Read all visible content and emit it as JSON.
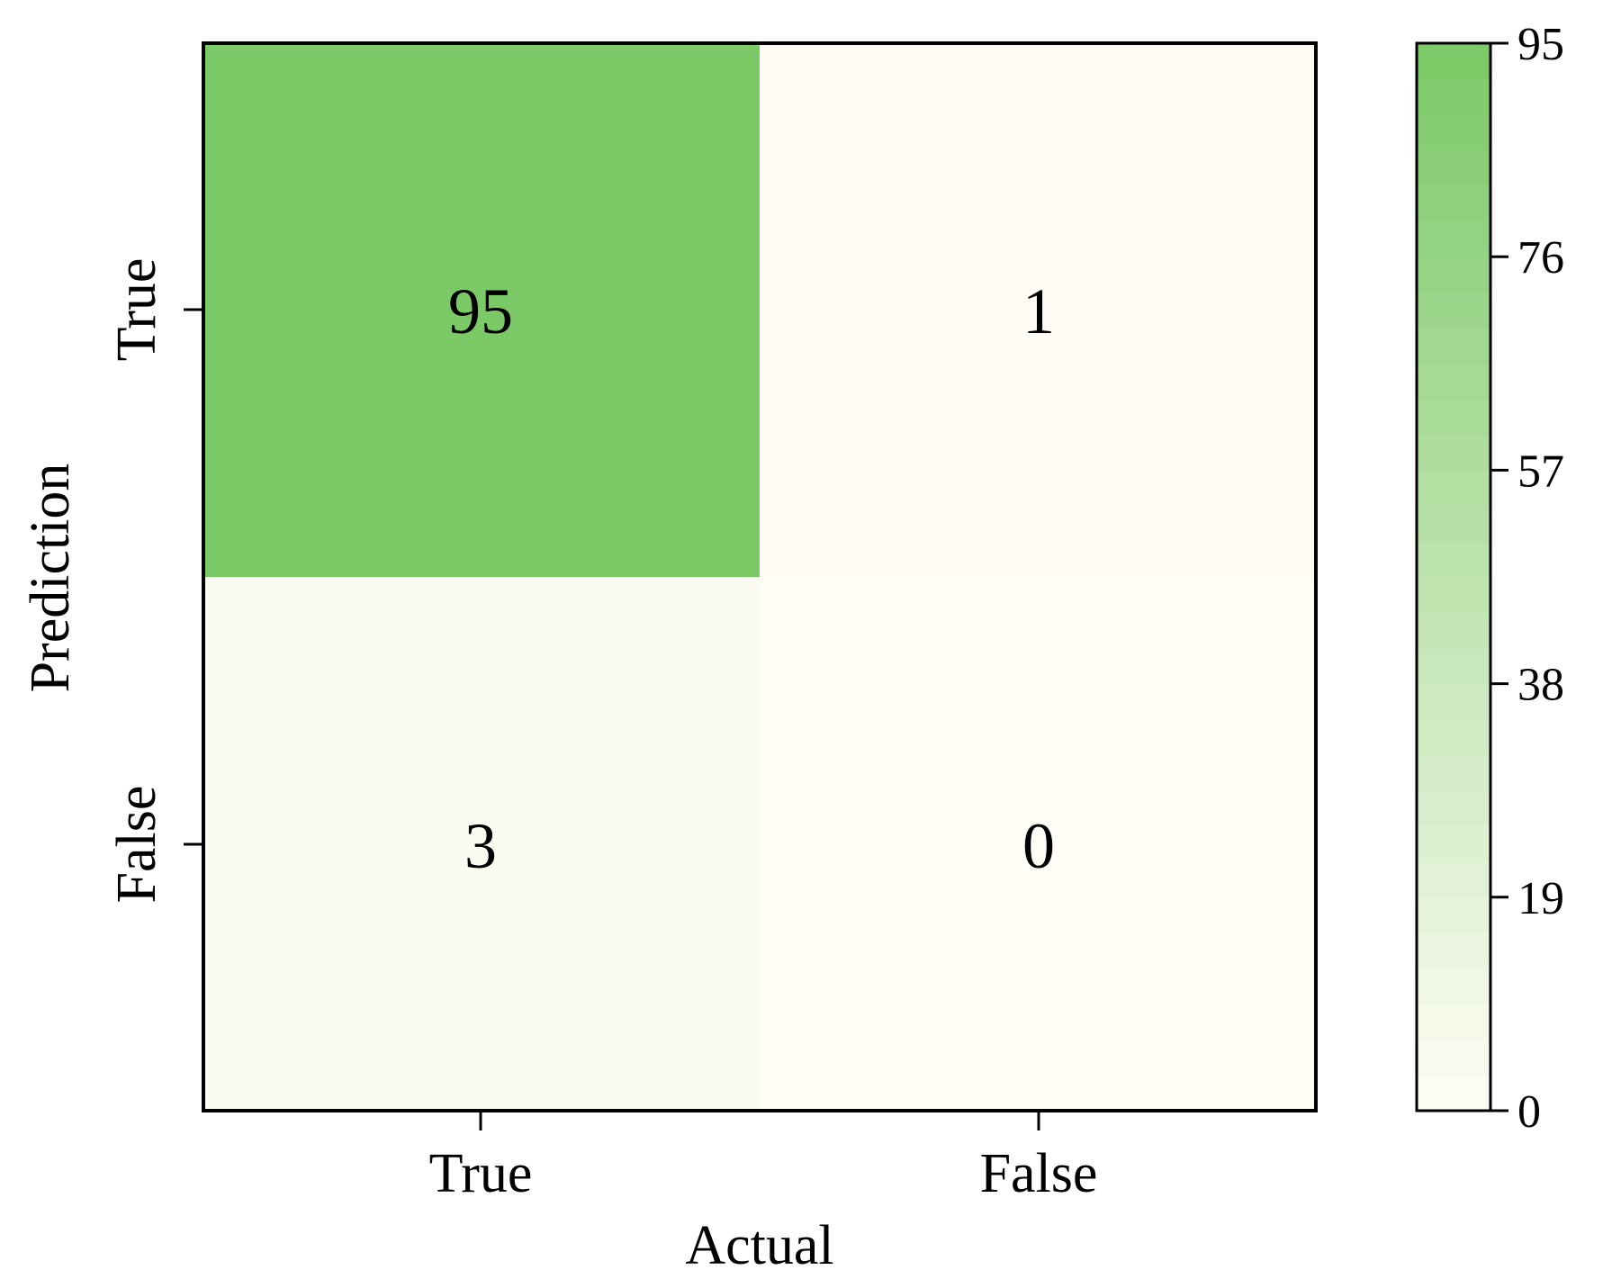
{
  "chart_data": {
    "type": "heatmap",
    "title": "",
    "xlabel": "Actual",
    "ylabel": "Prediction",
    "x_categories": [
      "True",
      "False"
    ],
    "y_categories": [
      "True",
      "False"
    ],
    "cells": [
      {
        "actual": "True",
        "prediction": "True",
        "value": 95
      },
      {
        "actual": "False",
        "prediction": "True",
        "value": 1
      },
      {
        "actual": "True",
        "prediction": "False",
        "value": 3
      },
      {
        "actual": "False",
        "prediction": "False",
        "value": 0
      }
    ],
    "cell_labels": {
      "true_true": "95",
      "false_true": "1",
      "true_false": "3",
      "false_false": "0"
    },
    "colorbar": {
      "range": [
        0,
        95
      ],
      "ticks": [
        0,
        19,
        38,
        57,
        76,
        95
      ],
      "tick_labels": [
        "0",
        "19",
        "38",
        "57",
        "76",
        "95"
      ],
      "low_color": "#fffdf5",
      "high_color": "#7bc967"
    },
    "grid": false,
    "legend": "colorbar-right"
  }
}
